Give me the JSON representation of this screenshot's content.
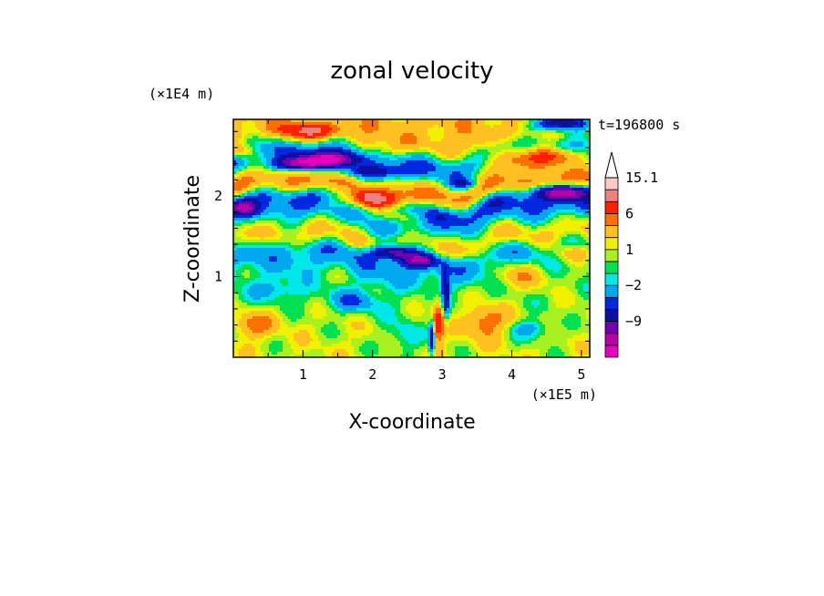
{
  "chart_data": {
    "type": "heatmap",
    "title": "zonal velocity",
    "xlabel": "X-coordinate",
    "ylabel": "Z-coordinate",
    "x_unit": "(×1E5 m)",
    "y_unit": "(×1E4 m)",
    "time_label": "t=196800 s",
    "xlim": [
      0,
      5.12
    ],
    "ylim": [
      0,
      2.95
    ],
    "x_ticks": [
      1,
      2,
      3,
      4,
      5
    ],
    "y_ticks": [
      1,
      2
    ],
    "colorbar": {
      "levels": [
        -15,
        -12,
        -9,
        -6,
        -4,
        -2,
        -1,
        0,
        1,
        2,
        4,
        6,
        9,
        12,
        15.1
      ],
      "labels": [
        {
          "value": 15.1,
          "text": "15.1"
        },
        {
          "value": 6,
          "text": "6"
        },
        {
          "value": 1,
          "text": "1"
        },
        {
          "value": -2,
          "text": "−2"
        },
        {
          "value": -9,
          "text": "−9"
        }
      ],
      "colors": [
        "#e800c0",
        "#b800a8",
        "#7000b0",
        "#1010a0",
        "#0028e0",
        "#00a8f0",
        "#00e8e8",
        "#00e050",
        "#a8f020",
        "#f0f000",
        "#ffc020",
        "#ff7000",
        "#ff2000",
        "#f08080",
        "#ffc8c8"
      ]
    },
    "field": {
      "bands": [
        {
          "z": 2.75,
          "value": 3
        },
        {
          "z": 2.45,
          "value": -4
        },
        {
          "z": 2.1,
          "value": 4
        },
        {
          "z": 1.85,
          "value": -5
        },
        {
          "z": 1.45,
          "value": 2
        },
        {
          "z": 1.2,
          "value": -3
        },
        {
          "z": 0.8,
          "value": 0
        },
        {
          "z": 0.3,
          "value": 1
        }
      ],
      "features": [
        {
          "x": 4.6,
          "z": 2.5,
          "amp": 9,
          "sx": 0.45,
          "sz": 0.12
        },
        {
          "x": 3.95,
          "z": 2.45,
          "amp": 6,
          "sx": 0.5,
          "sz": 0.15
        },
        {
          "x": 1.1,
          "z": 2.8,
          "amp": 7,
          "sx": 0.45,
          "sz": 0.1
        },
        {
          "x": 0.1,
          "z": 2.55,
          "amp": 6,
          "sx": 0.2,
          "sz": 0.1
        },
        {
          "x": 1.4,
          "z": 2.45,
          "amp": -14,
          "sx": 0.35,
          "sz": 0.09
        },
        {
          "x": 0.95,
          "z": 2.4,
          "amp": -12,
          "sx": 0.35,
          "sz": 0.08
        },
        {
          "x": 4.7,
          "z": 2.9,
          "amp": -12,
          "sx": 0.4,
          "sz": 0.1
        },
        {
          "x": 4.7,
          "z": 2.05,
          "amp": -11,
          "sx": 0.4,
          "sz": 0.08
        },
        {
          "x": 0.15,
          "z": 1.85,
          "amp": -9,
          "sx": 0.2,
          "sz": 0.08
        },
        {
          "x": 1.9,
          "z": 1.95,
          "amp": 8,
          "sx": 0.5,
          "sz": 0.12
        },
        {
          "x": 2.3,
          "z": 1.75,
          "amp": 5,
          "sx": 0.4,
          "sz": 0.1
        },
        {
          "x": 2.3,
          "z": 1.3,
          "amp": -12,
          "sx": 0.35,
          "sz": 0.09
        },
        {
          "x": 2.7,
          "z": 1.2,
          "amp": -10,
          "sx": 0.25,
          "sz": 0.08
        },
        {
          "x": 4.9,
          "z": 1.3,
          "amp": 6,
          "sx": 0.3,
          "sz": 0.12
        },
        {
          "x": 4.2,
          "z": 1.05,
          "amp": 4,
          "sx": 0.45,
          "sz": 0.18
        },
        {
          "x": 0.6,
          "z": 0.85,
          "amp": -3,
          "sx": 0.4,
          "sz": 0.15
        },
        {
          "x": 1.7,
          "z": 0.7,
          "amp": -4,
          "sx": 0.4,
          "sz": 0.15
        },
        {
          "x": 2.45,
          "z": 0.25,
          "amp": -3,
          "sx": 0.25,
          "sz": 0.2
        },
        {
          "x": 2.95,
          "z": 0.45,
          "amp": 8,
          "sx": 0.1,
          "sz": 0.25
        },
        {
          "x": 3.05,
          "z": 0.75,
          "amp": -8,
          "sx": 0.05,
          "sz": 0.35
        },
        {
          "x": 2.85,
          "z": 0.25,
          "amp": -10,
          "sx": 0.04,
          "sz": 0.2
        },
        {
          "x": 3.6,
          "z": 0.45,
          "amp": 5,
          "sx": 0.3,
          "sz": 0.2
        },
        {
          "x": 4.3,
          "z": 0.35,
          "amp": -4,
          "sx": 0.3,
          "sz": 0.12
        },
        {
          "x": 0.3,
          "z": 0.4,
          "amp": 4,
          "sx": 0.3,
          "sz": 0.15
        },
        {
          "x": 1.95,
          "z": 2.3,
          "amp": -5,
          "sx": 0.5,
          "sz": 0.07
        },
        {
          "x": 3.3,
          "z": 2.15,
          "amp": -6,
          "sx": 0.2,
          "sz": 0.07
        }
      ]
    }
  }
}
